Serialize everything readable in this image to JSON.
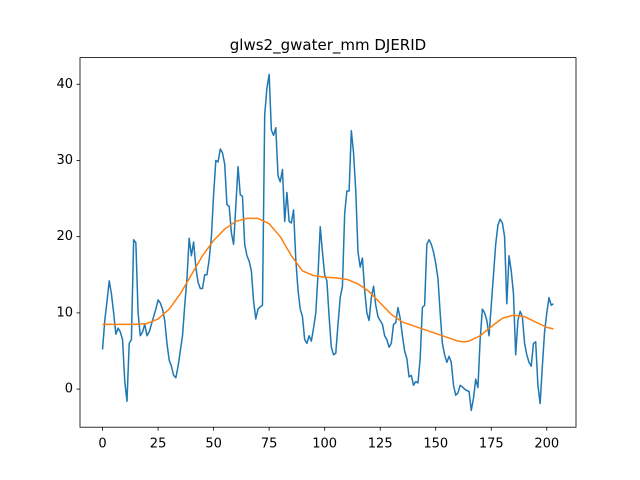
{
  "chart_data": {
    "type": "line",
    "title": "glws2_gwater_mm DJERID",
    "xlim": [
      -10.15,
      213.15
    ],
    "ylim": [
      -5.0,
      43.5
    ],
    "xticks": [
      0,
      25,
      50,
      75,
      100,
      125,
      150,
      175,
      200
    ],
    "yticks": [
      0,
      10,
      20,
      30,
      40
    ],
    "series": [
      {
        "color": "#1f77b4",
        "x": [
          0,
          1,
          2,
          3,
          4,
          5,
          6,
          7,
          8,
          9,
          10,
          11,
          12,
          13,
          14,
          15,
          16,
          17,
          18,
          19,
          20,
          21,
          22,
          23,
          24,
          25,
          26,
          27,
          28,
          29,
          30,
          31,
          32,
          33,
          34,
          35,
          36,
          37,
          38,
          39,
          40,
          41,
          42,
          43,
          44,
          45,
          46,
          47,
          48,
          49,
          50,
          51,
          52,
          53,
          54,
          55,
          56,
          57,
          58,
          59,
          60,
          61,
          62,
          63,
          64,
          65,
          66,
          67,
          68,
          69,
          70,
          71,
          72,
          73,
          74,
          75,
          76,
          77,
          78,
          79,
          80,
          81,
          82,
          83,
          84,
          85,
          86,
          87,
          88,
          89,
          90,
          91,
          92,
          93,
          94,
          95,
          96,
          97,
          98,
          99,
          100,
          101,
          102,
          103,
          104,
          105,
          106,
          107,
          108,
          109,
          110,
          111,
          112,
          113,
          114,
          115,
          116,
          117,
          118,
          119,
          120,
          121,
          122,
          123,
          124,
          125,
          126,
          127,
          128,
          129,
          130,
          131,
          132,
          133,
          134,
          135,
          136,
          137,
          138,
          139,
          140,
          141,
          142,
          143,
          144,
          145,
          146,
          147,
          148,
          149,
          150,
          151,
          152,
          153,
          154,
          155,
          156,
          157,
          158,
          159,
          160,
          161,
          162,
          163,
          164,
          165,
          166,
          167,
          168,
          169,
          170,
          171,
          172,
          173,
          174,
          175,
          176,
          177,
          178,
          179,
          180,
          181,
          182,
          183,
          184,
          185,
          186,
          187,
          188,
          189,
          190,
          191,
          192,
          193,
          194,
          195,
          196,
          197,
          198,
          199,
          200,
          201,
          202,
          203
        ],
        "values": [
          5.2,
          9,
          11.5,
          14.2,
          12.5,
          10,
          7.2,
          8,
          7.5,
          6.5,
          1,
          -1.6,
          6,
          6.5,
          19.6,
          19.2,
          10,
          7,
          7.5,
          8.5,
          7,
          7.5,
          8.5,
          9.5,
          10.5,
          11.7,
          11.3,
          10.5,
          9,
          6,
          3.8,
          3,
          1.8,
          1.5,
          3,
          5,
          7,
          11,
          14.5,
          19.8,
          17.5,
          19.3,
          16,
          14,
          13.2,
          13.2,
          15,
          15,
          17,
          20,
          25.5,
          30,
          29.8,
          31.5,
          31,
          29.5,
          24.2,
          24,
          20.5,
          19,
          24,
          29.2,
          25.5,
          25.3,
          19,
          17.5,
          16.8,
          15.5,
          11.5,
          9.2,
          10.5,
          10.8,
          11,
          36,
          39.5,
          41.3,
          34,
          33.3,
          34.3,
          28,
          27.2,
          28.8,
          22,
          25.8,
          22,
          21.8,
          23.5,
          17,
          13,
          10.5,
          9.5,
          6.5,
          6,
          7,
          6.3,
          8,
          10,
          15,
          21.3,
          18,
          15,
          14.2,
          9.5,
          5.5,
          4.5,
          4.7,
          8.5,
          12,
          13.5,
          23,
          26,
          26,
          33.9,
          31,
          26,
          18,
          16,
          17.2,
          13,
          10,
          9,
          12,
          13.5,
          11,
          9.5,
          9,
          8.5,
          7,
          6.5,
          5.5,
          6,
          8.5,
          8.7,
          10.7,
          9.3,
          7,
          5,
          4,
          1.6,
          1.8,
          0.5,
          1,
          0.8,
          4,
          10.7,
          11,
          19,
          19.6,
          19,
          18,
          16.5,
          14.5,
          10,
          6,
          4.5,
          3.5,
          4.3,
          3.5,
          0.5,
          -0.8,
          -0.5,
          0.5,
          0.3,
          0,
          -0.2,
          -0.3,
          -2.8,
          -1.2,
          1.3,
          0.2,
          6.5,
          10.5,
          10,
          9,
          7,
          11,
          15,
          19,
          21.5,
          22.3,
          21.8,
          20,
          11.2,
          17.5,
          15.5,
          12.5,
          4.5,
          9,
          10.2,
          9.5,
          6,
          4.5,
          3.5,
          3,
          6,
          6.2,
          0.5,
          -1.9,
          3,
          7.5,
          10,
          12,
          11,
          11.2
        ]
      },
      {
        "color": "#ff7f0e",
        "x": [
          0,
          5,
          10,
          15,
          20,
          25,
          30,
          35,
          40,
          45,
          50,
          55,
          60,
          65,
          70,
          75,
          80,
          85,
          90,
          95,
          100,
          105,
          110,
          115,
          120,
          125,
          130,
          135,
          140,
          145,
          150,
          155,
          160,
          163,
          165,
          170,
          175,
          180,
          185,
          190,
          195,
          200,
          203
        ],
        "values": [
          8.5,
          8.5,
          8.5,
          8.5,
          8.6,
          9.2,
          10.5,
          12.5,
          15,
          17.5,
          19.5,
          21,
          22,
          22.4,
          22.4,
          21.7,
          20,
          17.5,
          15.5,
          14.9,
          14.7,
          14.6,
          14.4,
          13.8,
          12.8,
          11.3,
          9.8,
          8.8,
          8.3,
          7.8,
          7.3,
          6.8,
          6.3,
          6.2,
          6.3,
          7,
          8.2,
          9.3,
          9.7,
          9.5,
          8.8,
          8.1,
          7.9
        ]
      }
    ]
  }
}
